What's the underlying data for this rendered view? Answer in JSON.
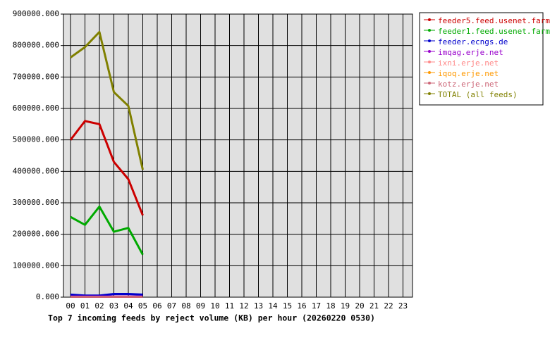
{
  "chart_data": {
    "type": "line",
    "title": "Top 7 incoming feeds by reject volume (KB) per hour (20260220 0530)",
    "categories": [
      "00",
      "01",
      "02",
      "03",
      "04",
      "05",
      "06",
      "07",
      "08",
      "09",
      "10",
      "11",
      "12",
      "13",
      "14",
      "15",
      "16",
      "17",
      "18",
      "19",
      "20",
      "21",
      "22",
      "23"
    ],
    "series": [
      {
        "name": "feeder5.feed.usenet.farm",
        "color": "#cc0000",
        "values": [
          500000,
          560000,
          550000,
          430000,
          375000,
          260000,
          null,
          null,
          null,
          null,
          null,
          null,
          null,
          null,
          null,
          null,
          null,
          null,
          null,
          null,
          null,
          null,
          null,
          null
        ]
      },
      {
        "name": "feeder1.feed.usenet.farm",
        "color": "#00aa00",
        "values": [
          255000,
          230000,
          288000,
          208000,
          220000,
          135000,
          null,
          null,
          null,
          null,
          null,
          null,
          null,
          null,
          null,
          null,
          null,
          null,
          null,
          null,
          null,
          null,
          null,
          null
        ]
      },
      {
        "name": "feeder.ecngs.de",
        "color": "#0000cc",
        "values": [
          8000,
          5000,
          5000,
          10000,
          10000,
          8000,
          null,
          null,
          null,
          null,
          null,
          null,
          null,
          null,
          null,
          null,
          null,
          null,
          null,
          null,
          null,
          null,
          null,
          null
        ]
      },
      {
        "name": "imqag.erje.net",
        "color": "#9900cc",
        "values": [
          2000,
          2000,
          2000,
          2000,
          2000,
          2000,
          null,
          null,
          null,
          null,
          null,
          null,
          null,
          null,
          null,
          null,
          null,
          null,
          null,
          null,
          null,
          null,
          null,
          null
        ]
      },
      {
        "name": "ixni.erje.net",
        "color": "#ff8888",
        "values": [
          1000,
          1000,
          1000,
          1000,
          1000,
          1000,
          null,
          null,
          null,
          null,
          null,
          null,
          null,
          null,
          null,
          null,
          null,
          null,
          null,
          null,
          null,
          null,
          null,
          null
        ]
      },
      {
        "name": "iqoq.erje.net",
        "color": "#ff9900",
        "values": [
          1000,
          1000,
          1000,
          1000,
          1000,
          1000,
          null,
          null,
          null,
          null,
          null,
          null,
          null,
          null,
          null,
          null,
          null,
          null,
          null,
          null,
          null,
          null,
          null,
          null
        ]
      },
      {
        "name": "kotz.erje.net",
        "color": "#cc6677",
        "values": [
          1000,
          1000,
          1000,
          1000,
          1000,
          1000,
          null,
          null,
          null,
          null,
          null,
          null,
          null,
          null,
          null,
          null,
          null,
          null,
          null,
          null,
          null,
          null,
          null,
          null
        ]
      },
      {
        "name": "TOTAL (all feeds)",
        "color": "#808000",
        "values": [
          762000,
          795000,
          843000,
          652000,
          608000,
          405000,
          null,
          null,
          null,
          null,
          null,
          null,
          null,
          null,
          null,
          null,
          null,
          null,
          null,
          null,
          null,
          null,
          null,
          null
        ]
      }
    ],
    "ylim": [
      0,
      900000
    ],
    "yticks": [
      {
        "value": 0,
        "label": "0.000"
      },
      {
        "value": 100000,
        "label": "100000.000"
      },
      {
        "value": 200000,
        "label": "200000.000"
      },
      {
        "value": 300000,
        "label": "300000.000"
      },
      {
        "value": 400000,
        "label": "400000.000"
      },
      {
        "value": 500000,
        "label": "500000.000"
      },
      {
        "value": 600000,
        "label": "600000.000"
      },
      {
        "value": 700000,
        "label": "700000.000"
      },
      {
        "value": 800000,
        "label": "800000.000"
      },
      {
        "value": 900000,
        "label": "900000.000"
      }
    ],
    "grid": true,
    "background": "#e0e0e0",
    "legend": "right"
  }
}
